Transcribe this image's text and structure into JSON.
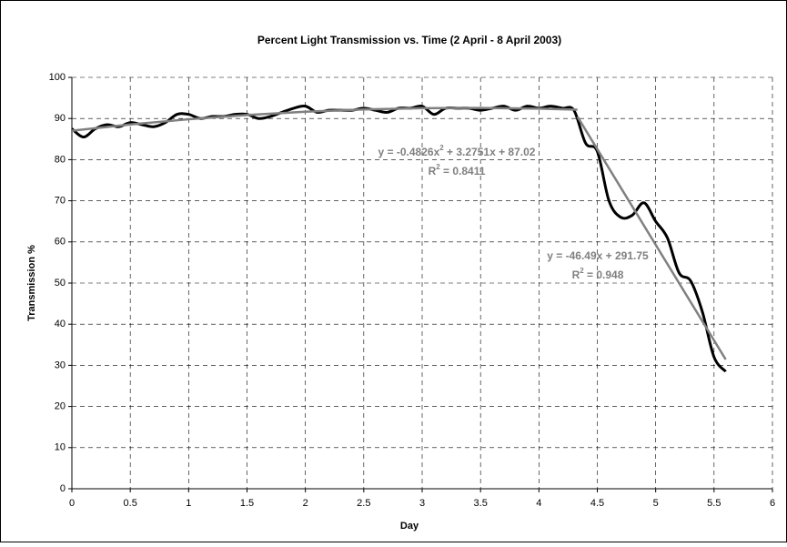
{
  "chart_data": {
    "type": "line",
    "title": "Percent Light Transmission vs. Time (2 April - 8 April 2003)",
    "x_label": "Day",
    "y_label": "Transmission %",
    "xlim": [
      0,
      6
    ],
    "xticks": [
      0,
      0.5,
      1,
      1.5,
      2,
      2.5,
      3,
      3.5,
      4,
      4.5,
      5,
      5.5,
      6
    ],
    "ylim": [
      0,
      100
    ],
    "yticks": [
      0,
      10,
      20,
      30,
      40,
      50,
      60,
      70,
      80,
      90,
      100
    ],
    "grid": true,
    "series": [
      {
        "color": "#000000",
        "x": [
          0,
          0.1,
          0.2,
          0.3,
          0.4,
          0.5,
          0.6,
          0.7,
          0.8,
          0.9,
          1.0,
          1.1,
          1.2,
          1.3,
          1.4,
          1.5,
          1.6,
          1.7,
          1.8,
          1.9,
          2.0,
          2.1,
          2.2,
          2.3,
          2.4,
          2.5,
          2.6,
          2.7,
          2.8,
          2.9,
          3.0,
          3.1,
          3.2,
          3.3,
          3.4,
          3.5,
          3.6,
          3.7,
          3.8,
          3.9,
          4.0,
          4.1,
          4.2,
          4.3,
          4.4,
          4.5,
          4.6,
          4.7,
          4.8,
          4.9,
          5.0,
          5.1,
          5.2,
          5.3,
          5.4,
          5.5,
          5.6
        ],
        "values": [
          87.5,
          85.5,
          87.5,
          88.5,
          88,
          89,
          88.5,
          88,
          89,
          91,
          91,
          90,
          90.5,
          90.5,
          91,
          91,
          90,
          90.5,
          91.5,
          92.5,
          93,
          91.5,
          92,
          92,
          92,
          92.5,
          92,
          91.5,
          92.5,
          92.5,
          93,
          91,
          92.5,
          92.5,
          92.5,
          92,
          92.5,
          93,
          92,
          93,
          92.5,
          93,
          92.5,
          92,
          84,
          82,
          70,
          66,
          66.5,
          69.5,
          65,
          61,
          52.5,
          50.5,
          43,
          32,
          28.5
        ]
      }
    ],
    "trendlines": [
      {
        "color": "#808080",
        "x": [
          0,
          0.5,
          1,
          1.5,
          2,
          2.5,
          3,
          3.5,
          4,
          4.33
        ],
        "values": [
          87.02,
          88.54,
          89.81,
          90.85,
          91.64,
          92.19,
          92.5,
          92.57,
          92.4,
          92.15
        ]
      },
      {
        "color": "#808080",
        "x": [
          4.33,
          5.6
        ],
        "values": [
          90.45,
          31.41
        ]
      }
    ],
    "annotations": [
      {
        "color": "#808080",
        "lines": [
          [
            "y = -0.4826x",
            "2",
            " + 3.2751x + 87.02"
          ],
          [
            "R",
            "2",
            " = 0.8411"
          ]
        ]
      },
      {
        "color": "#808080",
        "lines": [
          [
            "y = -46.49x + 291.75"
          ],
          [
            "R",
            "2",
            " = 0.948"
          ]
        ]
      }
    ]
  }
}
